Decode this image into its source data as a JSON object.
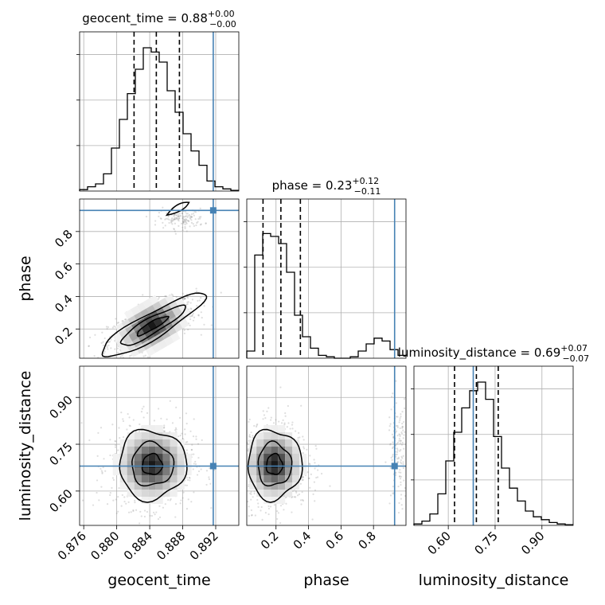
{
  "chart_data": {
    "type": "corner",
    "parameters": [
      "geocent_time",
      "phase",
      "luminosity_distance"
    ],
    "titles": [
      {
        "name": "geocent_time",
        "median": "0.88",
        "plus": "+0.00",
        "minus": "−0.00"
      },
      {
        "name": "phase",
        "median": "0.23",
        "plus": "+0.12",
        "minus": "−0.11"
      },
      {
        "name": "luminosity_distance",
        "median": "0.69",
        "plus": "+0.07",
        "minus": "−0.07"
      }
    ],
    "axes": {
      "geocent_time": {
        "range": [
          0.8755,
          0.8948
        ],
        "ticks": [
          "0.876",
          "0.880",
          "0.884",
          "0.888",
          "0.892"
        ]
      },
      "phase": {
        "range": [
          0.02,
          1.0
        ],
        "ticks": [
          "0.2",
          "0.4",
          "0.6",
          "0.8"
        ]
      },
      "luminosity_distance": {
        "range": [
          0.49,
          1.0
        ],
        "ticks": [
          "0.60",
          "0.75",
          "0.90"
        ]
      }
    },
    "truths": {
      "geocent_time": 0.8917,
      "phase": 0.93,
      "luminosity_distance": 0.68
    },
    "quantiles": {
      "geocent_time": [
        0.8821,
        0.8848,
        0.8876
      ],
      "phase": [
        0.12,
        0.23,
        0.35
      ],
      "luminosity_distance": [
        0.62,
        0.69,
        0.76
      ]
    },
    "histograms": {
      "geocent_time": [
        0.01,
        0.03,
        0.05,
        0.12,
        0.3,
        0.5,
        0.68,
        0.85,
        1.0,
        0.97,
        0.9,
        0.7,
        0.55,
        0.4,
        0.28,
        0.18,
        0.07,
        0.03,
        0.015,
        0.005
      ],
      "phase": [
        0.05,
        0.72,
        0.87,
        0.85,
        0.8,
        0.6,
        0.3,
        0.15,
        0.07,
        0.02,
        0.01,
        0.0,
        0.0,
        0.01,
        0.05,
        0.1,
        0.14,
        0.12,
        0.06,
        0.02
      ],
      "luminosity_distance": [
        0.01,
        0.03,
        0.08,
        0.22,
        0.45,
        0.65,
        0.82,
        0.94,
        1.0,
        0.88,
        0.62,
        0.4,
        0.26,
        0.17,
        0.1,
        0.06,
        0.04,
        0.02,
        0.01,
        0.005
      ]
    },
    "grid": true
  }
}
